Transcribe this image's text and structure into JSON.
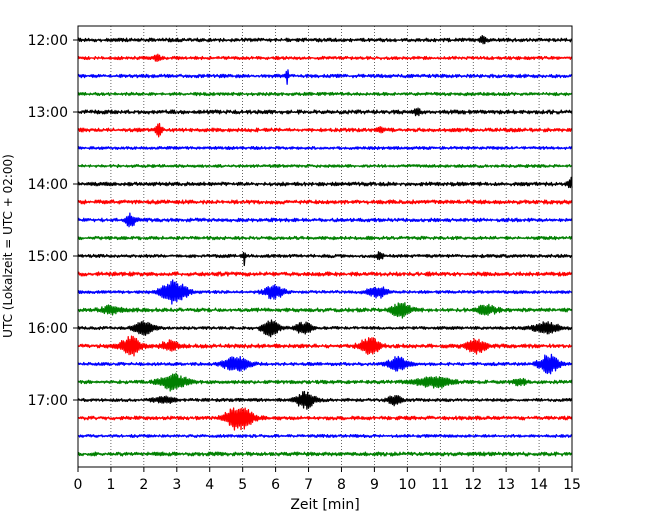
{
  "chart_data": {
    "type": "line",
    "title": "",
    "xlabel": "Zeit  [min]",
    "ylabel": "UTC (Lokalzeit = UTC + 02:00)",
    "xlim": [
      0,
      15
    ],
    "x_ticks": [
      "0",
      "1",
      "2",
      "3",
      "4",
      "5",
      "6",
      "7",
      "8",
      "9",
      "10",
      "11",
      "12",
      "13",
      "14",
      "15"
    ],
    "y_tick_labels": [
      "12:00",
      "13:00",
      "14:00",
      "15:00",
      "16:00",
      "17:00"
    ],
    "grid": "vertical dotted at each minute",
    "trace_colors": [
      "#000000",
      "#ff0000",
      "#0000ff",
      "#008000"
    ],
    "trace_start_times": [
      "12:00",
      "12:15",
      "12:30",
      "12:45",
      "13:00",
      "13:15",
      "13:30",
      "13:45",
      "14:00",
      "14:15",
      "14:30",
      "14:45",
      "15:00",
      "15:15",
      "15:30",
      "15:45",
      "16:00",
      "16:15",
      "16:30",
      "16:45",
      "17:00",
      "17:15",
      "17:30",
      "17:45"
    ],
    "events": [
      {
        "trace": "12:00",
        "x": 12.3,
        "amplitude": 0.3,
        "width": 0.1
      },
      {
        "trace": "12:15",
        "x": 2.4,
        "amplitude": 0.25,
        "width": 0.1
      },
      {
        "trace": "12:30",
        "x": 6.35,
        "amplitude": 1.0,
        "width": 0.03
      },
      {
        "trace": "13:00",
        "x": 10.3,
        "amplitude": 0.3,
        "width": 0.1
      },
      {
        "trace": "13:15",
        "x": 2.45,
        "amplitude": 0.5,
        "width": 0.1
      },
      {
        "trace": "13:15",
        "x": 9.2,
        "amplitude": 0.3,
        "width": 0.1
      },
      {
        "trace": "14:00",
        "x": 15.0,
        "amplitude": 0.5,
        "width": 0.1
      },
      {
        "trace": "14:30",
        "x": 1.6,
        "amplitude": 0.55,
        "width": 0.15
      },
      {
        "trace": "15:00",
        "x": 5.05,
        "amplitude": 0.8,
        "width": 0.03
      },
      {
        "trace": "15:00",
        "x": 9.15,
        "amplitude": 0.3,
        "width": 0.1
      },
      {
        "trace": "15:30",
        "x": 2.9,
        "amplitude": 1.0,
        "width": 0.4
      },
      {
        "trace": "15:30",
        "x": 5.95,
        "amplitude": 0.6,
        "width": 0.3
      },
      {
        "trace": "15:30",
        "x": 9.1,
        "amplitude": 0.45,
        "width": 0.3
      },
      {
        "trace": "15:45",
        "x": 1.0,
        "amplitude": 0.3,
        "width": 0.3
      },
      {
        "trace": "15:45",
        "x": 9.8,
        "amplitude": 0.6,
        "width": 0.3
      },
      {
        "trace": "15:45",
        "x": 12.4,
        "amplitude": 0.4,
        "width": 0.3
      },
      {
        "trace": "16:00",
        "x": 2.0,
        "amplitude": 0.6,
        "width": 0.3
      },
      {
        "trace": "16:00",
        "x": 5.85,
        "amplitude": 0.7,
        "width": 0.25
      },
      {
        "trace": "16:00",
        "x": 6.85,
        "amplitude": 0.5,
        "width": 0.25
      },
      {
        "trace": "16:00",
        "x": 14.2,
        "amplitude": 0.5,
        "width": 0.4
      },
      {
        "trace": "16:15",
        "x": 1.6,
        "amplitude": 0.8,
        "width": 0.3
      },
      {
        "trace": "16:15",
        "x": 2.8,
        "amplitude": 0.4,
        "width": 0.3
      },
      {
        "trace": "16:15",
        "x": 8.85,
        "amplitude": 0.7,
        "width": 0.3
      },
      {
        "trace": "16:15",
        "x": 12.1,
        "amplitude": 0.6,
        "width": 0.3
      },
      {
        "trace": "16:30",
        "x": 4.8,
        "amplitude": 0.6,
        "width": 0.4
      },
      {
        "trace": "16:30",
        "x": 9.7,
        "amplitude": 0.6,
        "width": 0.3
      },
      {
        "trace": "16:30",
        "x": 14.3,
        "amplitude": 0.8,
        "width": 0.3
      },
      {
        "trace": "16:45",
        "x": 2.9,
        "amplitude": 0.7,
        "width": 0.4
      },
      {
        "trace": "16:45",
        "x": 10.8,
        "amplitude": 0.5,
        "width": 0.5
      },
      {
        "trace": "16:45",
        "x": 13.4,
        "amplitude": 0.3,
        "width": 0.2
      },
      {
        "trace": "17:00",
        "x": 2.6,
        "amplitude": 0.3,
        "width": 0.3
      },
      {
        "trace": "17:00",
        "x": 6.9,
        "amplitude": 0.7,
        "width": 0.3
      },
      {
        "trace": "17:00",
        "x": 9.6,
        "amplitude": 0.4,
        "width": 0.2
      },
      {
        "trace": "17:15",
        "x": 4.9,
        "amplitude": 1.0,
        "width": 0.4
      }
    ]
  }
}
